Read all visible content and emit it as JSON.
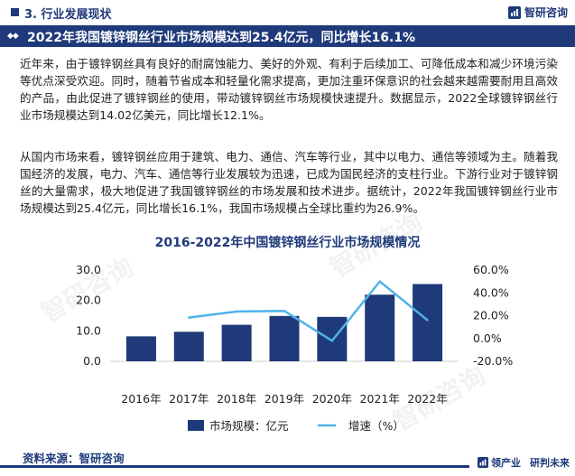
{
  "header": {
    "section_title": "3. 行业发展现状",
    "brand_name": "智研咨询"
  },
  "title_bar": {
    "headline": "2022年我国镀锌钢丝行业市场规模达到25.4亿元，同比增长16.1%"
  },
  "paragraphs": [
    "近年来，由于镀锌钢丝具有良好的耐腐蚀能力、美好的外观、有利于后续加工、可降低成本和减少环境污染等优点深受欢迎。同时，随着节省成本和轻量化需求提高，更加注重环保意识的社会越来越需要耐用且高效的产品，由此促进了镀锌钢丝的使用，带动镀锌钢丝市场规模快速提升。数据显示，2022全球镀锌钢丝行业市场规模达到14.02亿美元，同比增长12.1%。",
    "从国内市场来看，镀锌钢丝应用于建筑、电力、通信、汽车等行业，其中以电力、通信等领域为主。随着我国经济的发展，电力、汽车、通信等行业发展较为迅速，已成为国民经济的支柱行业。下游行业对于镀锌钢丝的大量需求，极大地促进了我国镀锌钢丝的市场发展和技术进步。据统计，2022年我国镀锌钢丝行业市场规模达到25.4亿元，同比增长16.1%，我国市场规模占全球比重约为26.9%。"
  ],
  "chart_data": {
    "type": "bar",
    "title": "2016-2022年中国镀锌钢丝行业市场规模情况",
    "categories": [
      "2016年",
      "2017年",
      "2018年",
      "2019年",
      "2020年",
      "2021年",
      "2022年"
    ],
    "series": [
      {
        "name": "市场规模：亿元",
        "type": "bar",
        "axis": "left",
        "color": "#1f3a7a",
        "values": [
          8.2,
          9.7,
          12.0,
          14.9,
          14.6,
          21.9,
          25.4
        ]
      },
      {
        "name": "增速（%）",
        "type": "line",
        "axis": "right",
        "color": "#4fb3e8",
        "values": [
          null,
          18.3,
          23.7,
          24.2,
          -2.0,
          50.0,
          16.1
        ]
      }
    ],
    "ylim_left": [
      0,
      30
    ],
    "yticks_left": [
      "0.0",
      "10.0",
      "20.0",
      "30.0"
    ],
    "ylim_right": [
      -20,
      60
    ],
    "yticks_right": [
      "-20.0%",
      "0.0%",
      "20.0%",
      "40.0%",
      "60.0%"
    ],
    "grid": false,
    "legend": "bottom"
  },
  "footer": {
    "source": "资料来源：智研咨询",
    "slogan_a": "领产业",
    "slogan_b": "研判未来"
  },
  "colors": {
    "brand": "#1f3a7a",
    "line": "#4fb3e8"
  }
}
